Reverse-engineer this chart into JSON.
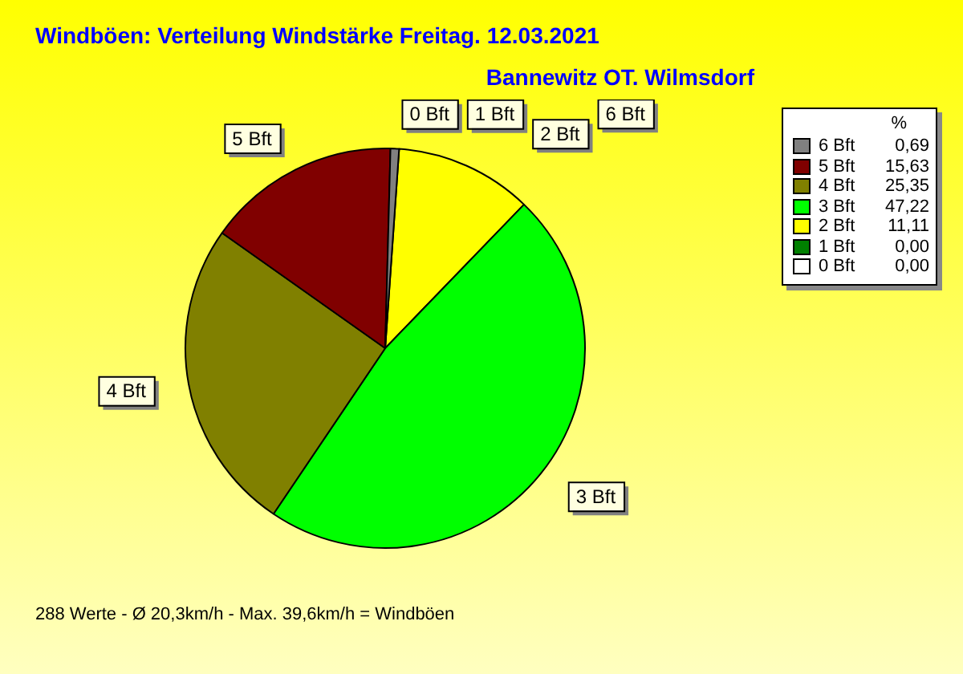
{
  "chart_data": {
    "type": "pie",
    "title": "Windböen: Verteilung Windstärke  Freitag. 12.03.2021",
    "subtitle": "Bannewitz OT. Wilmsdorf",
    "legend_title": "%",
    "categories": [
      "6 Bft",
      "5 Bft",
      "4 Bft",
      "3 Bft",
      "2 Bft",
      "1 Bft",
      "0 Bft"
    ],
    "values": [
      0.69,
      15.63,
      25.35,
      47.22,
      11.11,
      0.0,
      0.0
    ],
    "value_labels": [
      "0,69",
      "15,63",
      "25,35",
      "47,22",
      "11,11",
      "0,00",
      "0,00"
    ],
    "colors": [
      "#808080",
      "#800000",
      "#808000",
      "#00ff00",
      "#ffff00",
      "#008000",
      "#ffffff"
    ],
    "legend": "top right",
    "annotations": [
      "288 Werte   -   Ø 20,3km/h  -  Max. 39,6km/h = Windböen"
    ]
  }
}
